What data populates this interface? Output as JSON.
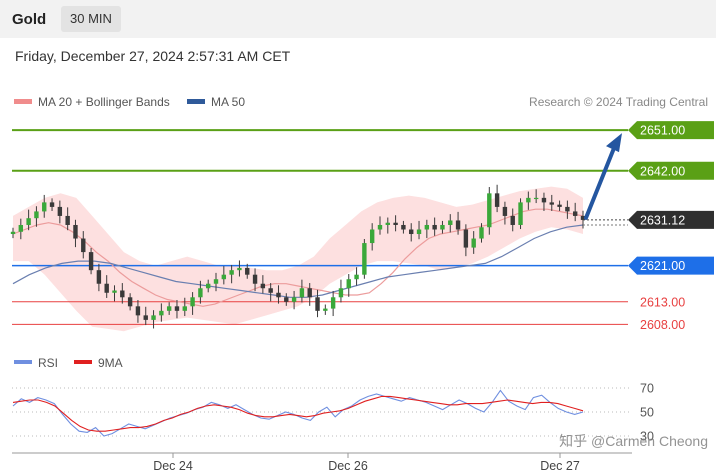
{
  "header": {
    "title": "Gold",
    "timeframe": "30 MIN"
  },
  "timestamp": "Friday, December 27, 2024 2:57:31 AM CET",
  "legend": {
    "items": [
      {
        "label": "MA 20 + Bollinger Bands",
        "color": "#f08c8c"
      },
      {
        "label": "MA 50",
        "color": "#2f5a9a"
      }
    ],
    "credit": "Research © 2024 Trading Central"
  },
  "rsi_legend": [
    {
      "label": "RSI",
      "color": "#6f8fe0"
    },
    {
      "label": "9MA",
      "color": "#e02020"
    }
  ],
  "watermark": "知乎 @Carmen Cheong",
  "colors": {
    "resistance": "#5aa016",
    "pivot": "#1e6fe8",
    "support": "#e84040",
    "candle_dark": "#3a3a3a",
    "candle_green": "#3aa83a",
    "arrow": "#2456a0",
    "band": "#fde0e0"
  },
  "chart_data": {
    "type": "candlestick",
    "x_labels": [
      "Dec 24",
      "Dec 26",
      "Dec 27"
    ],
    "ylim": [
      2603,
      2655
    ],
    "levels": [
      {
        "value": 2651.0,
        "label": "2651.00",
        "kind": "resistance"
      },
      {
        "value": 2642.0,
        "label": "2642.00",
        "kind": "resistance"
      },
      {
        "value": 2621.0,
        "label": "2621.00",
        "kind": "pivot"
      },
      {
        "value": 2613.0,
        "label": "2613.00",
        "kind": "support"
      },
      {
        "value": 2608.0,
        "label": "2608.00",
        "kind": "support"
      }
    ],
    "last_price": {
      "value": 2631.12,
      "label": "2631.12"
    },
    "price_path": [
      2628.5,
      2630,
      2631.5,
      2633,
      2635,
      2634,
      2632,
      2630,
      2627,
      2624,
      2620,
      2617,
      2615,
      2615.5,
      2614,
      2612,
      2610,
      2609,
      2610,
      2611,
      2612,
      2611,
      2612,
      2614,
      2616,
      2617,
      2618,
      2619,
      2620,
      2620.5,
      2619,
      2617,
      2616,
      2615,
      2614,
      2613,
      2614,
      2616,
      2614,
      2611,
      2611.5,
      2614,
      2616,
      2618,
      2619,
      2626,
      2629,
      2630,
      2630.5,
      2630,
      2629,
      2628,
      2629,
      2630,
      2629,
      2630,
      2631,
      2629,
      2625,
      2627,
      2629.5,
      2637,
      2634,
      2632,
      2630,
      2635,
      2636,
      2636,
      2635,
      2634.5,
      2634,
      2633,
      2632,
      2631.12
    ],
    "ma20": [
      2628,
      2629,
      2630,
      2630.5,
      2630,
      2628.5,
      2626.5,
      2624,
      2622,
      2619.5,
      2617.5,
      2616,
      2614.5,
      2613.5,
      2613,
      2612.5,
      2612,
      2612.5,
      2613.5,
      2614.5,
      2615.5,
      2616.5,
      2617,
      2617,
      2616.5,
      2616,
      2615.5,
      2615,
      2614.5,
      2614.5,
      2615,
      2617,
      2619.5,
      2622.5,
      2625,
      2627,
      2628,
      2628.5,
      2629,
      2629.5,
      2630,
      2631,
      2632,
      2633,
      2633.5,
      2633.5,
      2633,
      2632.5,
      2632
    ],
    "ma50": [
      2617,
      2619,
      2620.5,
      2621.5,
      2622,
      2622,
      2621.5,
      2620.5,
      2619.5,
      2618.5,
      2617.5,
      2617,
      2616.5,
      2616,
      2615.5,
      2615,
      2614.5,
      2614,
      2614,
      2614.5,
      2615.5,
      2616.5,
      2617.5,
      2618.5,
      2619,
      2619.5,
      2620,
      2620.5,
      2621,
      2621.5,
      2623,
      2625,
      2627,
      2628.5,
      2629.5,
      2630
    ],
    "bb_upper": [
      2632,
      2634,
      2636,
      2637,
      2636,
      2632,
      2628,
      2624,
      2622,
      2621,
      2622,
      2623,
      2622,
      2621,
      2621,
      2620.5,
      2620,
      2620,
      2621,
      2623,
      2627,
      2630,
      2633,
      2635,
      2636,
      2636.5,
      2636,
      2635,
      2634,
      2634.5,
      2635.5,
      2636.5,
      2637.5,
      2638,
      2638.5,
      2638,
      2636
    ],
    "bb_lower": [
      2622,
      2622,
      2619,
      2615,
      2611,
      2607.5,
      2607,
      2606.5,
      2607.5,
      2608.5,
      2609,
      2609.5,
      2609,
      2608.5,
      2608,
      2609,
      2610,
      2611,
      2612,
      2614,
      2617,
      2619,
      2621,
      2622,
      2622,
      2621.5,
      2621,
      2620,
      2620.5,
      2621.5,
      2623,
      2625,
      2627,
      2628.5,
      2629.5,
      2629,
      2628
    ],
    "projection": {
      "from": 2631.12,
      "to": 2651.0
    },
    "rsi": {
      "ticks": [
        70,
        50,
        30
      ],
      "ylim": [
        25,
        75
      ],
      "rsi": [
        55,
        61,
        58,
        62,
        60,
        57,
        48,
        40,
        34,
        33,
        37,
        30,
        32,
        36,
        40,
        38,
        36,
        39,
        42,
        45,
        47,
        49,
        52,
        54,
        58,
        56,
        53,
        56,
        52,
        48,
        45,
        44,
        47,
        50,
        48,
        45,
        43,
        50,
        54,
        46,
        52,
        55,
        60,
        63,
        65,
        63,
        61,
        59,
        62,
        60,
        58,
        55,
        52,
        56,
        60,
        57,
        53,
        50,
        58,
        68,
        59,
        55,
        52,
        62,
        64,
        58,
        53,
        50,
        48,
        50
      ],
      "ma9": [
        58,
        59,
        60,
        60,
        58,
        55,
        49,
        43,
        38,
        35,
        34,
        34,
        35,
        36,
        37,
        37,
        38,
        40,
        43,
        45,
        48,
        50,
        53,
        55,
        56,
        55,
        54,
        52,
        49,
        47,
        46,
        46,
        47,
        48,
        47,
        46,
        47,
        49,
        50,
        51,
        53,
        56,
        59,
        61,
        63,
        63,
        62,
        61,
        60,
        59,
        58,
        57,
        56,
        56,
        57,
        57,
        57,
        58,
        59,
        60,
        59,
        58,
        57,
        58,
        58,
        57,
        55,
        53,
        51
      ]
    }
  }
}
